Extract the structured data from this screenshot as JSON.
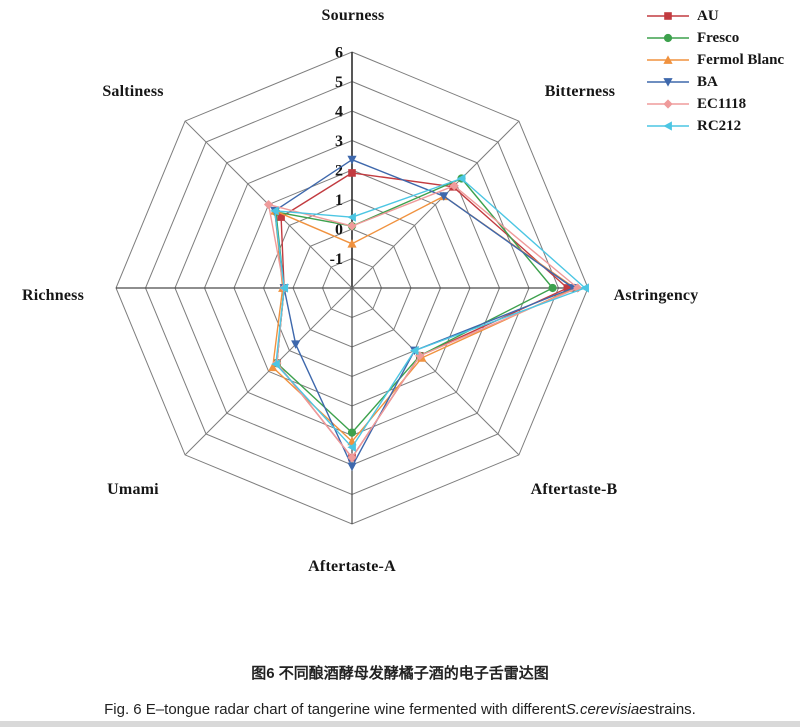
{
  "figure": {
    "caption_zh": "图6 不同酿酒酵母发酵橘子酒的电子舌雷达图",
    "caption_en": {
      "prefix": "Fig. 6 E–tongue radar chart of tangerine wine fermented with different",
      "italic": "S.cerevisiae",
      "suffix": "strains."
    }
  },
  "chart_data": {
    "type": "radar",
    "axes": [
      "Sourness",
      "Bitterness",
      "Astringency",
      "Aftertaste-B",
      "Aftertaste-A",
      "Umami",
      "Richness",
      "Saltiness"
    ],
    "scale": {
      "min": -2,
      "max": 6,
      "rings": [
        -1,
        0,
        1,
        2,
        3,
        4,
        5,
        6
      ],
      "tick_labels": [
        "6",
        "5",
        "4",
        "3",
        "2",
        "1",
        "0",
        "-1"
      ]
    },
    "grid": {
      "ring_color": "#7d7d7d",
      "spoke_color": "#7d7d7d",
      "cardinal_color": "#4a4a4a",
      "main_axis_color": "#3a3a3a"
    },
    "legend_position": "top-right",
    "series": [
      {
        "name": "AU",
        "color": "#c23b40",
        "marker": "square",
        "values": [
          1.9,
          2.85,
          5.3,
          1.25,
          3.75,
          1.6,
          0.3,
          1.4
        ]
      },
      {
        "name": "Fresco",
        "color": "#3da14d",
        "marker": "circle",
        "values": [
          0.1,
          3.25,
          4.8,
          1.25,
          2.9,
          1.6,
          0.3,
          1.65
        ]
      },
      {
        "name": "Fermol Blanc",
        "color": "#f0923f",
        "marker": "triangle-up",
        "values": [
          -0.5,
          2.4,
          5.55,
          1.35,
          3.2,
          1.8,
          0.35,
          1.7
        ]
      },
      {
        "name": "BA",
        "color": "#3e68ac",
        "marker": "triangle-down",
        "values": [
          2.35,
          2.4,
          5.5,
          1.0,
          4.05,
          0.7,
          0.3,
          1.7
        ]
      },
      {
        "name": "EC1118",
        "color": "#ef9b9b",
        "marker": "diamond",
        "values": [
          0.1,
          2.9,
          5.65,
          1.25,
          3.75,
          1.6,
          0.3,
          2.0
        ]
      },
      {
        "name": "RC212",
        "color": "#4cc6e3",
        "marker": "triangle-left",
        "values": [
          0.4,
          3.25,
          5.9,
          1.0,
          3.4,
          1.65,
          0.3,
          1.7
        ]
      }
    ]
  }
}
